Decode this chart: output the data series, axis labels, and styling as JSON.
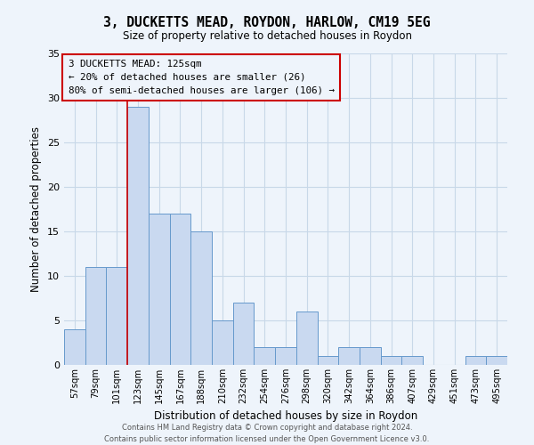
{
  "title": "3, DUCKETTS MEAD, ROYDON, HARLOW, CM19 5EG",
  "subtitle": "Size of property relative to detached houses in Roydon",
  "xlabel": "Distribution of detached houses by size in Roydon",
  "ylabel": "Number of detached properties",
  "bin_labels": [
    "57sqm",
    "79sqm",
    "101sqm",
    "123sqm",
    "145sqm",
    "167sqm",
    "188sqm",
    "210sqm",
    "232sqm",
    "254sqm",
    "276sqm",
    "298sqm",
    "320sqm",
    "342sqm",
    "364sqm",
    "386sqm",
    "407sqm",
    "429sqm",
    "451sqm",
    "473sqm",
    "495sqm"
  ],
  "bar_heights": [
    4,
    11,
    11,
    29,
    17,
    17,
    15,
    5,
    7,
    2,
    2,
    6,
    1,
    2,
    2,
    1,
    1,
    0,
    0,
    1,
    1
  ],
  "bar_color": "#c9d9f0",
  "bar_edgecolor": "#6699cc",
  "ylim": [
    0,
    35
  ],
  "yticks": [
    0,
    5,
    10,
    15,
    20,
    25,
    30,
    35
  ],
  "grid_color": "#c8d8e8",
  "background_color": "#eef4fb",
  "annotation_title": "3 DUCKETTS MEAD: 125sqm",
  "annotation_line1": "← 20% of detached houses are smaller (26)",
  "annotation_line2": "80% of semi-detached houses are larger (106) →",
  "annotation_box_edgecolor": "#cc0000",
  "property_line_x": 3,
  "property_line_color": "#cc0000",
  "footer_line1": "Contains HM Land Registry data © Crown copyright and database right 2024.",
  "footer_line2": "Contains public sector information licensed under the Open Government Licence v3.0."
}
